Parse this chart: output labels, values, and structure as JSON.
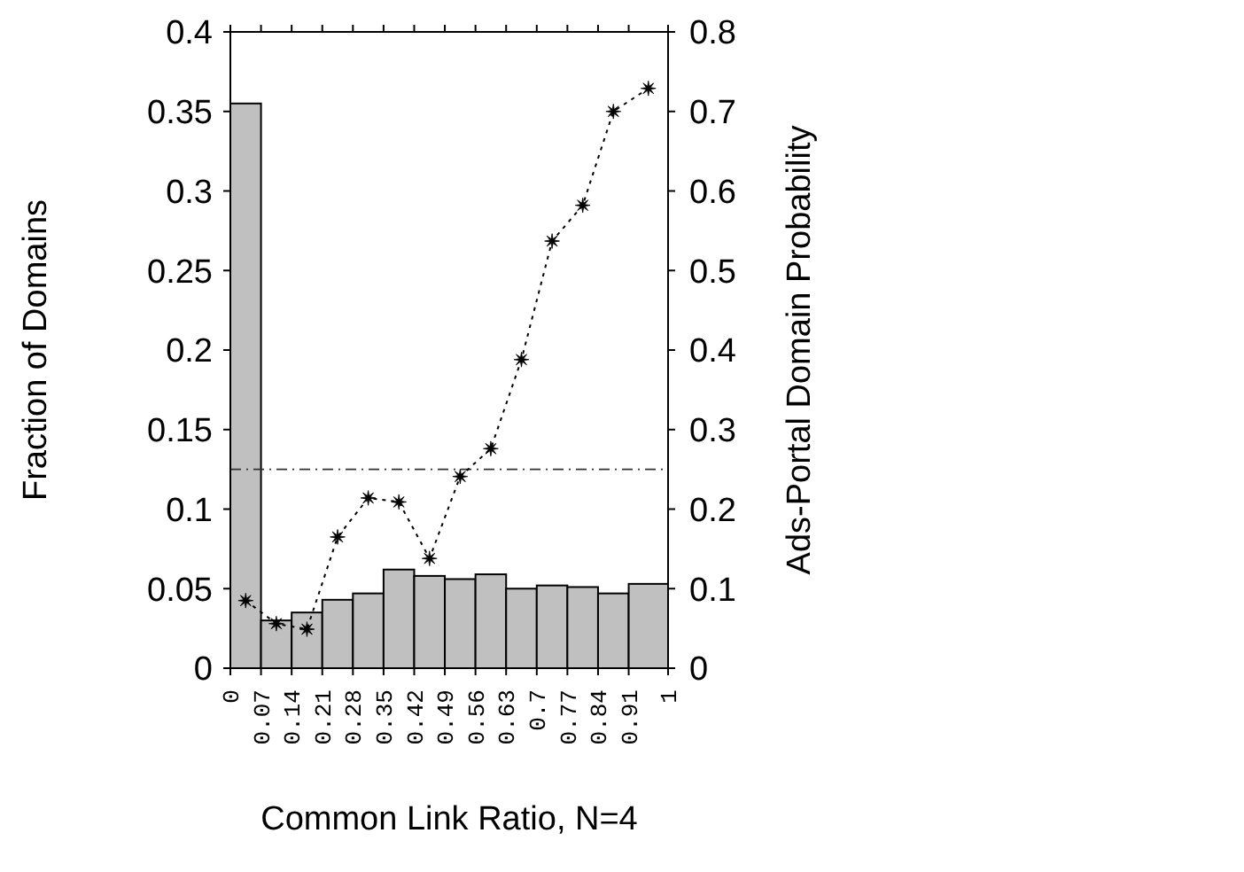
{
  "chart_data": {
    "type": "histogram",
    "xlabel": "Common Link Ratio, N=4",
    "ylabel": "Fraction of Domains",
    "y2label": "Ads-Portal Domain Probability",
    "bins": [
      0,
      0.07,
      0.14,
      0.21,
      0.28,
      0.35,
      0.42,
      0.49,
      0.56,
      0.63,
      0.7,
      0.77,
      0.84,
      0.91,
      1
    ],
    "values": [
      0.355,
      0.03,
      0.035,
      0.043,
      0.047,
      0.062,
      0.058,
      0.056,
      0.059,
      0.05,
      0.052,
      0.051,
      0.047,
      0.053
    ],
    "color": "#c0c0c0",
    "series": [
      {
        "type": "line",
        "axis": "y2",
        "color": "#000000",
        "marker": "star",
        "line_style": "dotted",
        "x": [
          0.035,
          0.105,
          0.175,
          0.245,
          0.315,
          0.385,
          0.455,
          0.525,
          0.595,
          0.665,
          0.735,
          0.805,
          0.875,
          0.955
        ],
        "values": [
          0.085,
          0.056,
          0.049,
          0.165,
          0.214,
          0.209,
          0.138,
          0.241,
          0.276,
          0.388,
          0.537,
          0.582,
          0.7,
          0.729
        ]
      }
    ],
    "xlim": [
      0,
      1
    ],
    "xticks": [
      0,
      0.07,
      0.14,
      0.21,
      0.28,
      0.35,
      0.42,
      0.49,
      0.56,
      0.63,
      0.7,
      0.77,
      0.84,
      0.91,
      1
    ],
    "ylim": [
      0,
      0.4
    ],
    "yticks": [
      0,
      0.05,
      0.1,
      0.15,
      0.2,
      0.25,
      0.3,
      0.35,
      0.4
    ],
    "y2lim": [
      0,
      0.8
    ],
    "y2ticks": [
      0,
      0.1,
      0.2,
      0.3,
      0.4,
      0.5,
      0.6,
      0.7,
      0.8
    ],
    "ref_lines": [
      {
        "axis": "y",
        "value": 0.125,
        "line_style": "dashdot",
        "color": "#333333"
      }
    ],
    "grid": false
  }
}
